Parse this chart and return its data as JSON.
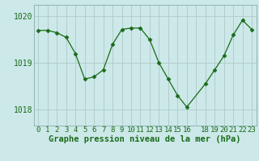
{
  "x_values": [
    0,
    1,
    2,
    3,
    4,
    5,
    6,
    7,
    8,
    9,
    10,
    11,
    12,
    13,
    14,
    15,
    16,
    18,
    19,
    20,
    21,
    22,
    23
  ],
  "y_values": [
    1019.7,
    1019.7,
    1019.65,
    1019.55,
    1019.2,
    1018.65,
    1018.7,
    1018.85,
    1019.4,
    1019.72,
    1019.75,
    1019.75,
    1019.5,
    1019.0,
    1018.65,
    1018.3,
    1018.05,
    1018.55,
    1018.85,
    1019.15,
    1019.6,
    1019.92,
    1019.72
  ],
  "line_color": "#1a6b1a",
  "marker": "D",
  "marker_size": 2.5,
  "background_color": "#cce8e8",
  "grid_color": "#b0c8c8",
  "text_color": "#1a6b1a",
  "ylim_min": 1017.65,
  "ylim_max": 1020.25,
  "yticks": [
    1018,
    1019,
    1020
  ],
  "xlabel": "Graphe pression niveau de la mer (hPa)",
  "xlabel_fontsize": 7.5,
  "tick_fontsize": 7,
  "x_tick_labels": [
    "0",
    "1",
    "2",
    "3",
    "4",
    "5",
    "6",
    "7",
    "8",
    "9",
    "10",
    "11",
    "12",
    "13",
    "14",
    "15",
    "16",
    "",
    "18",
    "19",
    "20",
    "21",
    "22",
    "23"
  ]
}
